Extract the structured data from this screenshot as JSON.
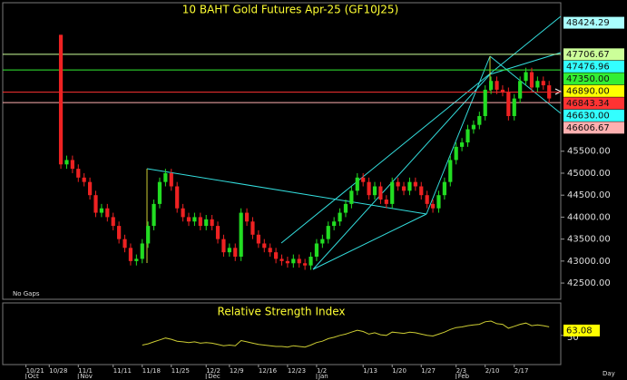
{
  "chart_data": {
    "type": "candlestick",
    "title": "10 BAHT Gold Futures Apr-25 (GF10J25)",
    "note": "No Gaps",
    "x_label": "Day",
    "up_color": "#22dd22",
    "down_color": "#ee2222",
    "xlim": [
      -10,
      86
    ],
    "xticks": [
      {
        "value": -6,
        "label": "10/21"
      },
      {
        "value": -2,
        "label": "10/28"
      },
      {
        "value": 3,
        "label": "11/1"
      },
      {
        "value": 9,
        "label": "11/11"
      },
      {
        "value": 14,
        "label": "11/18"
      },
      {
        "value": 19,
        "label": "11/25"
      },
      {
        "value": 25,
        "label": "12/2"
      },
      {
        "value": 29,
        "label": "12/9"
      },
      {
        "value": 34,
        "label": "12/16"
      },
      {
        "value": 39,
        "label": "12/23"
      },
      {
        "value": 44,
        "label": "1/2"
      },
      {
        "value": 52,
        "label": "1/13"
      },
      {
        "value": 57,
        "label": "1/20"
      },
      {
        "value": 62,
        "label": "1/27"
      },
      {
        "value": 68,
        "label": "2/3"
      },
      {
        "value": 73,
        "label": "2/10"
      },
      {
        "value": 78,
        "label": "2/17"
      }
    ],
    "month_ticks": [
      {
        "value": -6,
        "label": "Oct"
      },
      {
        "value": 3,
        "label": "Nov"
      },
      {
        "value": 25,
        "label": "Dec"
      },
      {
        "value": 44,
        "label": "Jan"
      },
      {
        "value": 68,
        "label": "Feb"
      }
    ],
    "ylim": [
      42130,
      48880
    ],
    "yticks": [
      {
        "value": 42500,
        "label": "42500.00"
      },
      {
        "value": 43000,
        "label": "43000.00"
      },
      {
        "value": 43500,
        "label": "43500.00"
      },
      {
        "value": 44000,
        "label": "44000.00"
      },
      {
        "value": 44500,
        "label": "44500.00"
      },
      {
        "value": 45000,
        "label": "45000.00"
      },
      {
        "value": 45500,
        "label": "45500.00"
      }
    ],
    "open": [
      48150,
      45200,
      45300,
      45100,
      44900,
      44800,
      44500,
      44100,
      44200,
      44000,
      43800,
      43500,
      43300,
      43000,
      43050,
      43400,
      43800,
      44300,
      44800,
      45000,
      44700,
      44200,
      44000,
      43900,
      44000,
      43800,
      43950,
      43800,
      43500,
      43200,
      43300,
      43100,
      44100,
      43900,
      43600,
      43400,
      43300,
      43200,
      43050,
      43000,
      42950,
      43050,
      42950,
      42900,
      43100,
      43400,
      43500,
      43800,
      43900,
      44100,
      44300,
      44600,
      44900,
      44800,
      44500,
      44700,
      44400,
      44300,
      44800,
      44700,
      44600,
      44800,
      44700,
      44500,
      44300,
      44200,
      44500,
      44800,
      45300,
      45600,
      45700,
      46000,
      46100,
      46300,
      46900,
      47100,
      46900,
      46850,
      46300,
      46700,
      47100,
      47300,
      46950,
      47100,
      47000
    ],
    "high": [
      48150,
      45400,
      45400,
      45200,
      45000,
      44900,
      44600,
      44300,
      44300,
      44100,
      43900,
      43600,
      43400,
      43150,
      43500,
      43900,
      44400,
      44900,
      45100,
      45100,
      44800,
      44300,
      44100,
      44100,
      44100,
      44050,
      44050,
      43900,
      43600,
      43400,
      43400,
      44200,
      44200,
      44000,
      43700,
      43500,
      43400,
      43300,
      43150,
      43100,
      43150,
      43150,
      43050,
      43200,
      43500,
      43600,
      43900,
      44000,
      44200,
      44400,
      44700,
      45000,
      45000,
      44900,
      44800,
      44800,
      44500,
      44900,
      44900,
      44800,
      44900,
      44900,
      44800,
      44600,
      44400,
      44600,
      44900,
      45400,
      45700,
      45800,
      46100,
      46200,
      46400,
      47000,
      47200,
      47200,
      47000,
      46950,
      46800,
      47200,
      47400,
      47400,
      47200,
      47200,
      47100
    ],
    "low": [
      45100,
      45100,
      45000,
      44800,
      44700,
      44400,
      44000,
      44000,
      43900,
      43700,
      43400,
      43200,
      42900,
      42900,
      42950,
      43300,
      43700,
      44200,
      44700,
      44600,
      44100,
      43900,
      43800,
      43800,
      43700,
      43700,
      43700,
      43400,
      43100,
      43100,
      43000,
      43000,
      43800,
      43500,
      43300,
      43200,
      43100,
      42950,
      42900,
      42850,
      42850,
      42850,
      42800,
      42800,
      43000,
      43300,
      43400,
      43700,
      43800,
      44000,
      44200,
      44500,
      44700,
      44400,
      44400,
      44300,
      44200,
      44200,
      44600,
      44500,
      44500,
      44600,
      44400,
      44200,
      44100,
      44100,
      44400,
      44700,
      45200,
      45500,
      45600,
      45900,
      46000,
      46200,
      46800,
      46800,
      46750,
      46200,
      46200,
      46600,
      47000,
      46850,
      46850,
      46900,
      46600
    ],
    "close": [
      45200,
      45300,
      45100,
      44900,
      44800,
      44500,
      44100,
      44200,
      44000,
      43800,
      43500,
      43300,
      43000,
      43050,
      43400,
      43800,
      44300,
      44800,
      45000,
      44700,
      44200,
      44000,
      43900,
      44000,
      43800,
      43950,
      43800,
      43500,
      43200,
      43300,
      43100,
      44100,
      43900,
      43600,
      43400,
      43300,
      43200,
      43050,
      43000,
      42950,
      43050,
      42950,
      42900,
      43100,
      43400,
      43500,
      43800,
      43900,
      44100,
      44300,
      44600,
      44900,
      44800,
      44500,
      44700,
      44400,
      44300,
      44800,
      44700,
      44600,
      44800,
      44700,
      44500,
      44300,
      44200,
      44500,
      44800,
      45300,
      45600,
      45700,
      46000,
      46100,
      46300,
      46900,
      47100,
      46900,
      46850,
      46300,
      46700,
      47100,
      47300,
      46950,
      47100,
      47000,
      46700
    ],
    "levels": [
      {
        "value": 48424.29,
        "label": "48424.29",
        "color": "#aaffff",
        "line": false
      },
      {
        "value": 47706.67,
        "label": "47706.67",
        "color": "#ccff99",
        "line": true
      },
      {
        "value": 47476.96,
        "label": "47476.96",
        "color": "#33ffff",
        "line": false
      },
      {
        "value": 47350,
        "label": "47350.00",
        "color": "#33ee33",
        "line": true
      },
      {
        "value": 46890,
        "label": "46890.00",
        "color": "#ffff00",
        "line": false
      },
      {
        "value": 46843.34,
        "label": "46843.34",
        "color": "#ff3333",
        "line": true
      },
      {
        "value": 46630,
        "label": "46630.00",
        "color": "#33ffff",
        "line": false
      },
      {
        "value": 46606.67,
        "label": "46606.67",
        "color": "#ffb0b0",
        "line": true
      }
    ],
    "rsi": {
      "title": "Relative Strength Index",
      "color": "#cccc33",
      "label_color": "#ffff00",
      "ylim": [
        5,
        100
      ],
      "yticks": [
        50
      ],
      "values": [
        null,
        null,
        null,
        null,
        null,
        null,
        null,
        null,
        null,
        null,
        null,
        null,
        null,
        null,
        35,
        37,
        40,
        43,
        46,
        44,
        41,
        40,
        39,
        40,
        38,
        39,
        38,
        36,
        34,
        35,
        34,
        42,
        40,
        38,
        36,
        35,
        34,
        33,
        33,
        32,
        34,
        33,
        32,
        35,
        39,
        41,
        45,
        47,
        50,
        52,
        55,
        58,
        56,
        52,
        54,
        51,
        50,
        55,
        54,
        53,
        55,
        54,
        52,
        50,
        49,
        52,
        55,
        59,
        62,
        63,
        65,
        66,
        67,
        71,
        72,
        68,
        67,
        61,
        64,
        67,
        69,
        65,
        66,
        65,
        63.08
      ]
    }
  }
}
